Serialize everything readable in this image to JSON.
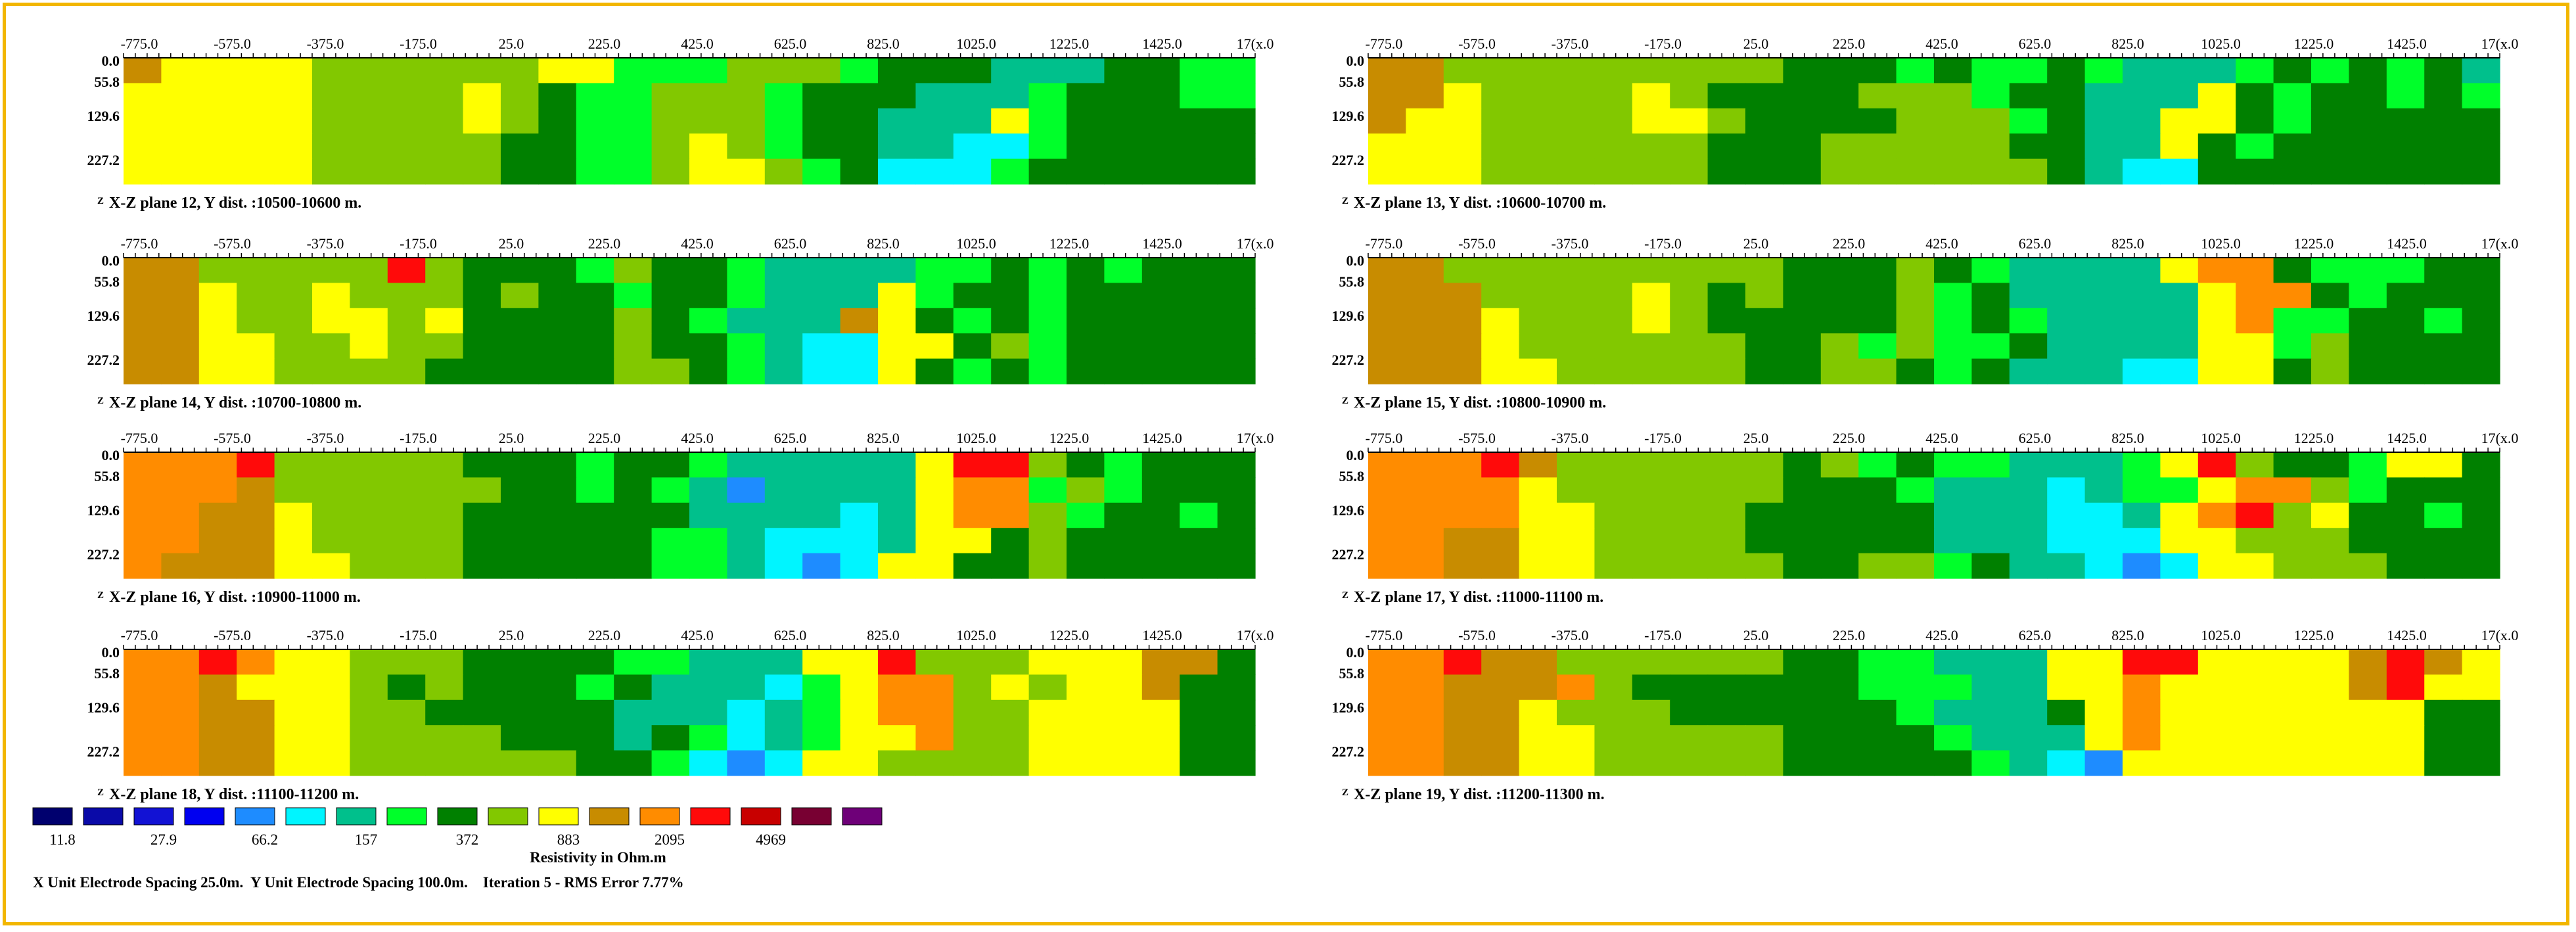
{
  "page": {
    "border_color": "#f2b600"
  },
  "chart_data": {
    "type": "heatmap",
    "x_ticks": [
      "-775.0",
      "-575.0",
      "-375.0",
      "-175.0",
      "25.0",
      "225.0",
      "425.0",
      "625.0",
      "825.0",
      "1025.0",
      "1225.0",
      "1425.0",
      "17(x.0"
    ],
    "depth_ticks": [
      "0.0",
      "55.8",
      "129.6",
      "227.2"
    ],
    "z_marker": "Z",
    "legend": {
      "colors": [
        "#00006e",
        "#0a0aa8",
        "#1212d4",
        "#0000f0",
        "#1e8cff",
        "#00f5ff",
        "#00c08c",
        "#00ff2a",
        "#008000",
        "#82c800",
        "#ffff00",
        "#c88c00",
        "#ff8c00",
        "#ff0a0a",
        "#c80000",
        "#780032",
        "#6e0078"
      ],
      "labels": [
        "11.8",
        "27.9",
        "66.2",
        "157",
        "372",
        "883",
        "2095",
        "4969"
      ],
      "title": "Resistivity in Ohm.m"
    },
    "footer": "X Unit Electrode Spacing 25.0m.  Y Unit Electrode Spacing 100.0m.    Iteration 5 - RMS Error 7.77%",
    "panels": [
      {
        "caption": "X-Z plane 12, Y dist. :10500-10600 m.",
        "grid": [
          "kyyyyllllllyyggglllgGGGcccGGgg",
          "yyyyyllllylGgglllgGGGcccgGGGgg",
          "yyyyyllllylGgglllgGGcccygGGGGG",
          "yyyyylllllGGgglylgGGccCCgGGGGG",
          "yyyyylllllGGgglyylgGCCCgGGGGGG"
        ]
      },
      {
        "caption": "X-Z plane 13, Y dist. :10600-10700 m.",
        "grid": [
          "kklllllllllGGGgGggGgcccgGgGgGc",
          "kkyllllylGGGGlllgGGcccyGgGGgGg",
          "kyyllllyylGGGGlllgGccyyGgGGGGG",
          "yyyllllllGGGlllllGGccyGgGGGGGG",
          "yyyllllllGGGllllllGcCCGGGGGGGG"
        ]
      },
      {
        "caption": "X-Z plane 14, Y dist. :10700-10800 m.",
        "grid": [
          "kklllllrlGGGglGGgccccggGgGgGGG",
          "kkyllylllGlGGgGGgcccygGGgGGGGG",
          "kkyllyylyGGGGlGgccckyGgGgGGGGG",
          "kkyyllyllGGGGlGGgcCCyyGlgGGGGG",
          "kkyyllllGGGGGllGgcCCyGgGgGGGGG"
        ]
      },
      {
        "caption": "X-Z plane 15, Y dist. :10800-10900 m.",
        "grid": [
          "kklllllllllGGGlGgccccyooGgggGG",
          "kkkllllylGlGGGlgGcccccyooGgGGG",
          "kkkylllylGGGGGlgGgccccyoggGGgG",
          "kkkyllllllGGlglggGccccyyglGGGG",
          "kkkyylllllGGllGgGcccCCyyGlGGGG"
        ]
      },
      {
        "caption": "X-Z plane 16, Y dist. :10900-11000 m.",
        "grid": [
          "ooorlllllGGGgGGgcccccyrrlGgGGG",
          "oookllllllGGgGgcbccccyooglgGGG",
          "ookkyllllGGGGGGccccCcyoolgGGgG",
          "ookkyllllGGGGGggcCCCcyyGlGGGGG",
          "okkkyylllGGGGGggcCbCyyGGlGGGGG"
        ]
      },
      {
        "caption": "X-Z plane 17, Y dist. :11000-11100 m.",
        "grid": [
          "ooorkllllllGlgGggcccgyrlGGgyyG",
          "ooooyllllllGGGgcccCcggyoolgGGG",
          "ooooyyllllGGGGGcccCCcyorlyGGgG",
          "ookkyyllllGGGGGcccCCCyylllGGGG",
          "ookkyylllllGGllgGccCbCyylllGGG"
        ]
      },
      {
        "caption": "X-Z plane 18, Y dist. :11100-11200 m.",
        "grid": [
          "ooroyylllGGGGggcccyyrlllyyykkG",
          "ookyyylGlGGGgGcccCgyoolylyykGG",
          "ookkyyllGGGGGcccCcgyoollyyyyGG",
          "ookkyyllllGGGcGgCcgyyollyyyyGG",
          "ookkyyllllllGGgCbCyyllllyyyyGG"
        ]
      },
      {
        "caption": "X-Z plane 19, Y dist. :11200-11300 m.",
        "grid": [
          "oorkkllllllGGggcccyyrryyyykrky",
          "ookkkolGGGGGGgggccyyoyyyyykryy",
          "ookkylllGGGGGGgcccGyoyyyyyyyGG",
          "ookkyylllllGGGGgcccyoyyyyyyyGG",
          "ookkyylllllGGGGGgcCbyyyyyyyyGG"
        ]
      }
    ]
  }
}
